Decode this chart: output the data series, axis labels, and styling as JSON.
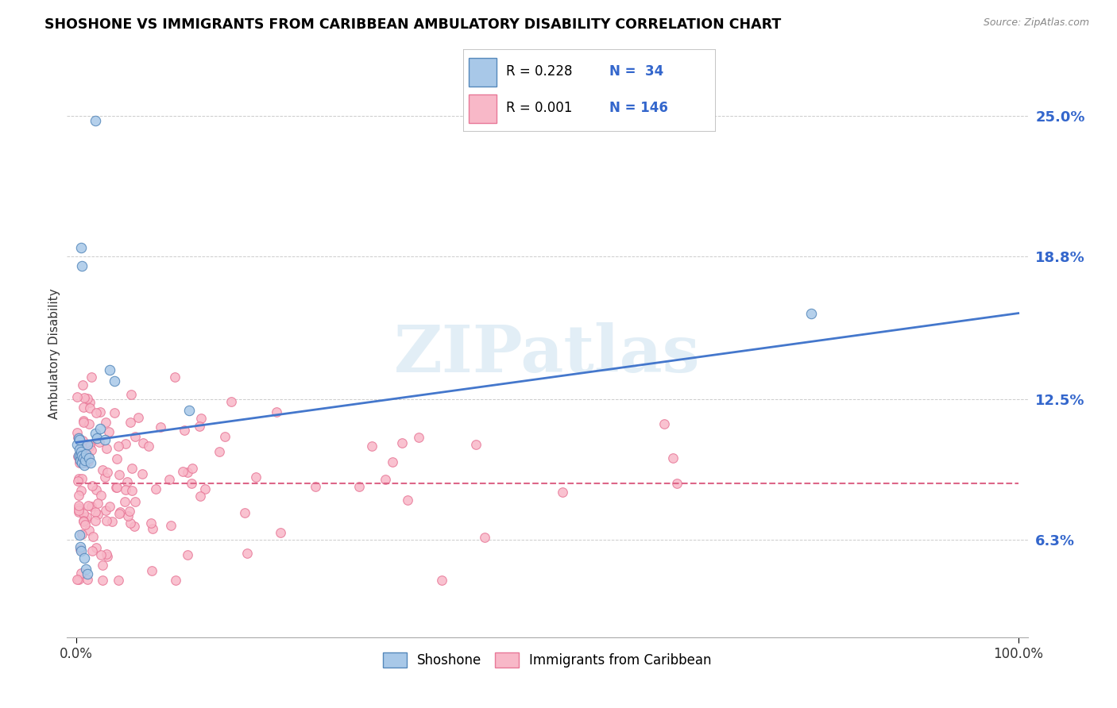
{
  "title": "SHOSHONE VS IMMIGRANTS FROM CARIBBEAN AMBULATORY DISABILITY CORRELATION CHART",
  "source": "Source: ZipAtlas.com",
  "ylabel": "Ambulatory Disability",
  "ytick_vals": [
    0.063,
    0.125,
    0.188,
    0.25
  ],
  "ytick_labels": [
    "6.3%",
    "12.5%",
    "18.8%",
    "25.0%"
  ],
  "xtick_vals": [
    0.0,
    1.0
  ],
  "xtick_labels": [
    "0.0%",
    "100.0%"
  ],
  "legend_label1": "Shoshone",
  "legend_label2": "Immigrants from Caribbean",
  "legend_R1": "R = 0.228",
  "legend_N1": "N =  34",
  "legend_R2": "R = 0.001",
  "legend_N2": "N = 146",
  "color_blue_fill": "#a8c8e8",
  "color_blue_edge": "#5588bb",
  "color_pink_fill": "#f8b8c8",
  "color_pink_edge": "#e87898",
  "color_blue_line": "#4477cc",
  "color_pink_line": "#dd6688",
  "watermark": "ZIPatlas",
  "ylim_min": 0.02,
  "ylim_max": 0.27,
  "xlim_min": -0.01,
  "xlim_max": 1.01,
  "blue_line_y0": 0.106,
  "blue_line_y1": 0.163,
  "pink_line_y0": 0.088,
  "pink_line_y1": 0.088
}
